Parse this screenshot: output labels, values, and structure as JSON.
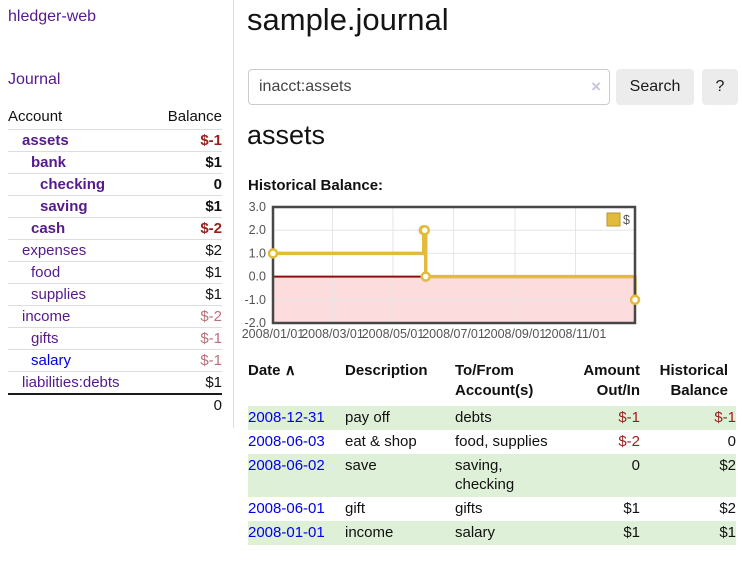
{
  "sidebar": {
    "brand": "hledger-web",
    "nav_journal": "Journal",
    "accounts": {
      "headers": {
        "account": "Account",
        "balance": "Balance"
      },
      "rows": [
        {
          "account": "assets",
          "balance": "$-1"
        },
        {
          "account": "bank",
          "balance": "$1"
        },
        {
          "account": "checking",
          "balance": "0"
        },
        {
          "account": "saving",
          "balance": "$1"
        },
        {
          "account": "cash",
          "balance": "$-2"
        },
        {
          "account": "expenses",
          "balance": "$2"
        },
        {
          "account": "food",
          "balance": "$1"
        },
        {
          "account": "supplies",
          "balance": "$1"
        },
        {
          "account": "income",
          "balance": "$-2"
        },
        {
          "account": "gifts",
          "balance": "$-1"
        },
        {
          "account": "salary",
          "balance": "$-1"
        },
        {
          "account": "liabilities:debts",
          "balance": "$1"
        }
      ],
      "total": "0"
    }
  },
  "header": {
    "title": "sample.journal"
  },
  "search": {
    "value": "inacct:assets",
    "clear_icon": "×",
    "button_label": "Search",
    "help_label": "?"
  },
  "account_page": {
    "title": "assets",
    "chart_label": "Historical Balance:"
  },
  "chart_data": {
    "type": "line",
    "step": true,
    "series": [
      {
        "name": "$",
        "color": "#e2ba3c",
        "x": [
          "2008-01-01",
          "2008-06-01",
          "2008-06-02",
          "2008-06-03",
          "2008-12-31"
        ],
        "values": [
          1,
          2,
          2,
          0,
          -1
        ]
      }
    ],
    "x_ticks": [
      "2008/01/01",
      "2008/03/01",
      "2008/05/01",
      "2008/07/01",
      "2008/09/01",
      "2008/11/01"
    ],
    "y_ticks": [
      3,
      2,
      1,
      0,
      -1,
      -2
    ],
    "xlim": [
      "2008-01-01",
      "2008-12-31"
    ],
    "ylim": [
      -2,
      3
    ],
    "title": "Historical Balance:",
    "grid": true,
    "legend_position": "top-right",
    "legend_label": "$",
    "negative_region_color": "#fcdcdc",
    "zero_line_color": "#8b1010",
    "border_color": "#474747",
    "grid_color": "#e6e6e6"
  },
  "register": {
    "columns": {
      "date": "Date",
      "description": "Description",
      "accounts": "To/From Account(s)",
      "amount": "Amount Out/In",
      "balance": "Historical Balance"
    },
    "sort_icon": "∧",
    "rows": [
      {
        "date": "2008-12-31",
        "description": "pay off",
        "accounts": "debts",
        "amount": "$-1",
        "balance": "$-1"
      },
      {
        "date": "2008-06-03",
        "description": "eat & shop",
        "accounts": "food, supplies",
        "amount": "$-2",
        "balance": "0"
      },
      {
        "date": "2008-06-02",
        "description": "save",
        "accounts": "saving,\nchecking",
        "amount": "0",
        "balance": "$2"
      },
      {
        "date": "2008-06-01",
        "description": "gift",
        "accounts": "gifts",
        "amount": "$1",
        "balance": "$2"
      },
      {
        "date": "2008-01-01",
        "description": "income",
        "accounts": "salary",
        "amount": "$1",
        "balance": "$1"
      }
    ]
  }
}
